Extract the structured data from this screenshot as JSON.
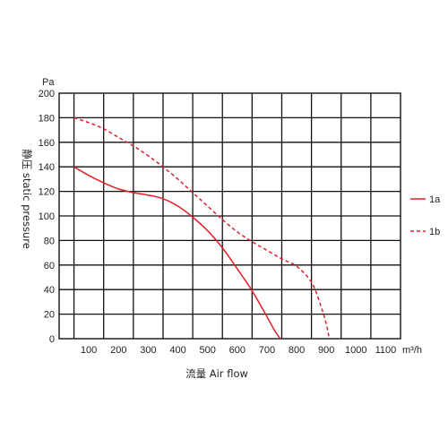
{
  "chart_data": {
    "type": "line",
    "xlabel": "流量 Air flow",
    "ylabel": "静压 static pressure",
    "x_unit": "m³/h",
    "y_unit": "Pa",
    "xlim": [
      0,
      1150
    ],
    "ylim": [
      0,
      200
    ],
    "x_ticks": [
      100,
      200,
      300,
      400,
      500,
      600,
      700,
      800,
      900,
      1000,
      1100
    ],
    "y_ticks": [
      0,
      20,
      40,
      60,
      80,
      100,
      120,
      140,
      160,
      180,
      200
    ],
    "grid": true,
    "legend_position": "right",
    "series": [
      {
        "name": "1a",
        "color": "#e0202a",
        "dash": "solid",
        "x": [
          50,
          100,
          150,
          200,
          250,
          300,
          350,
          400,
          450,
          500,
          550,
          600,
          650,
          700,
          725,
          745
        ],
        "y": [
          140,
          133,
          127,
          122,
          119,
          117,
          114,
          108,
          99,
          88,
          74,
          57,
          39,
          18,
          7,
          0
        ]
      },
      {
        "name": "1b",
        "color": "#e0202a",
        "dash": "dashed",
        "x": [
          50,
          100,
          150,
          200,
          250,
          300,
          350,
          400,
          450,
          500,
          550,
          600,
          650,
          700,
          750,
          800,
          850,
          880,
          900,
          910
        ],
        "y": [
          180,
          176,
          171,
          164,
          157,
          149,
          140,
          130,
          119,
          108,
          97,
          87,
          79,
          72,
          65,
          59,
          46,
          28,
          12,
          0
        ]
      }
    ]
  }
}
